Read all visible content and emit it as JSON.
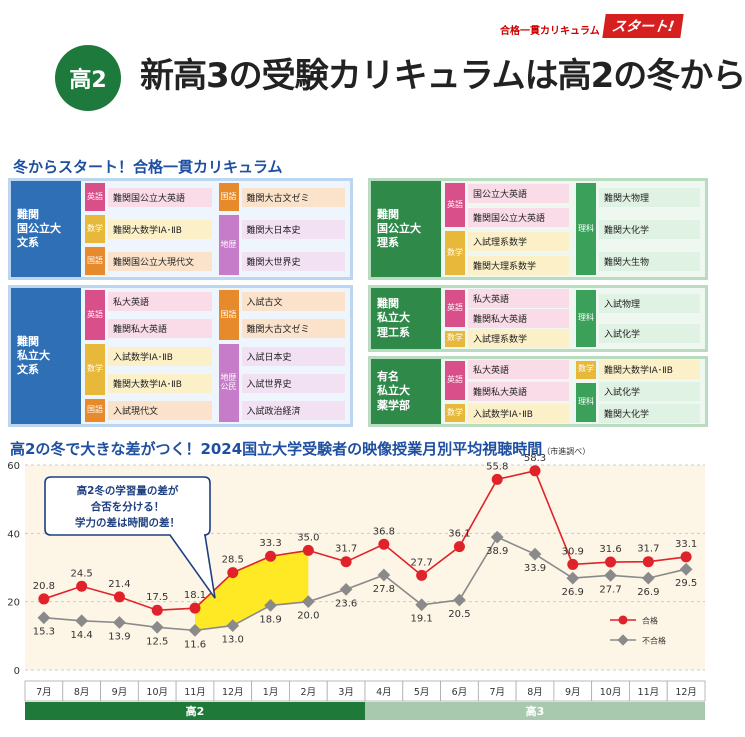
{
  "header": {
    "badge": "高2",
    "title": "新高3の受験カリキュラムは高2の冬から",
    "tag_small": "合格一貫カリキュラム",
    "tag_start": "スタート!"
  },
  "curriculum": {
    "heading": "冬からスタート！合格一貫カリキュラム",
    "panels": [
      {
        "label": "難関\n国公立大\n文系",
        "subjects": [
          {
            "name": "英語",
            "type": "eng",
            "courses": [
              "難関国公立大英語"
            ]
          },
          {
            "name": "数学",
            "type": "math",
            "courses": [
              "難関大数学ⅠA･ⅡB"
            ]
          },
          {
            "name": "国語",
            "type": "jp",
            "courses": [
              "難関国公立大現代文"
            ]
          }
        ],
        "subjects2": [
          {
            "name": "国語",
            "type": "jp",
            "courses": [
              "難関大古文ゼミ"
            ]
          },
          {
            "name": "地歴",
            "type": "geo",
            "courses": [
              "難関大日本史",
              "難関大世界史"
            ]
          }
        ]
      },
      {
        "label": "難関\n私立大\n文系",
        "subjects": [
          {
            "name": "英語",
            "type": "eng",
            "courses": [
              "私大英語",
              "難関私大英語"
            ]
          },
          {
            "name": "数学",
            "type": "math",
            "courses": [
              "入試数学ⅠA･ⅡB",
              "難関大数学ⅠA･ⅡB"
            ]
          },
          {
            "name": "国語",
            "type": "jp",
            "courses": [
              "入試現代文"
            ]
          }
        ],
        "subjects2": [
          {
            "name": "国語",
            "type": "jp",
            "courses": [
              "入試古文",
              "難関大古文ゼミ"
            ]
          },
          {
            "name": "地歴\n公民",
            "type": "geo",
            "courses": [
              "入試日本史",
              "入試世界史",
              "入試政治経済"
            ]
          }
        ]
      },
      {
        "label": "難関\n国公立大\n理系",
        "subjects": [
          {
            "name": "英語",
            "type": "eng",
            "courses": [
              "国公立大英語",
              "難関国公立大英語"
            ]
          },
          {
            "name": "数学",
            "type": "math",
            "courses": [
              "入試理系数学",
              "難関大理系数学"
            ]
          }
        ],
        "subjects2": [
          {
            "name": "理科",
            "type": "sci",
            "courses": [
              "難関大物理",
              "難関大化学",
              "難関大生物"
            ]
          }
        ]
      },
      {
        "label": "難関\n私立大\n理工系",
        "subjects": [
          {
            "name": "英語",
            "type": "eng",
            "courses": [
              "私大英語",
              "難関私大英語"
            ]
          },
          {
            "name": "数学",
            "type": "math",
            "courses": [
              "入試理系数学"
            ]
          }
        ],
        "subjects2": [
          {
            "name": "理科",
            "type": "sci",
            "courses": [
              "入試物理",
              "入試化学"
            ]
          }
        ]
      },
      {
        "label": "有名\n私立大\n薬学部",
        "subjects": [
          {
            "name": "英語",
            "type": "eng",
            "courses": [
              "私大英語",
              "難関私大英語"
            ]
          },
          {
            "name": "数学",
            "type": "math",
            "courses": [
              "入試数学ⅠA･ⅡB"
            ]
          }
        ],
        "subjects2": [
          {
            "name": "数学",
            "type": "math",
            "courses": [
              "難関大数学ⅠA･ⅡB"
            ]
          },
          {
            "name": "理科",
            "type": "sci",
            "courses": [
              "入試化学",
              "難関大化学"
            ]
          }
        ]
      }
    ]
  },
  "chart_data": {
    "type": "line",
    "title": "高2の冬で大きな差がつく！2024国立大学受験者の映像授業月別平均視聴時間",
    "source_note": "（市進調べ）",
    "categories": [
      "7月",
      "8月",
      "9月",
      "10月",
      "11月",
      "12月",
      "1月",
      "2月",
      "3月",
      "4月",
      "5月",
      "6月",
      "7月",
      "8月",
      "9月",
      "10月",
      "11月",
      "12月"
    ],
    "series": [
      {
        "name": "合格",
        "color": "#e0222a",
        "values": [
          20.8,
          24.5,
          21.4,
          17.5,
          18.1,
          28.5,
          33.3,
          35.0,
          31.7,
          36.8,
          27.7,
          36.1,
          55.8,
          58.3,
          30.9,
          31.6,
          31.7,
          33.1
        ]
      },
      {
        "name": "不合格",
        "color": "#8a8a8a",
        "values": [
          15.3,
          14.4,
          13.9,
          12.5,
          11.6,
          13.0,
          18.9,
          20.0,
          23.6,
          27.8,
          19.1,
          20.5,
          38.9,
          33.9,
          26.9,
          27.7,
          26.9,
          29.5
        ]
      }
    ],
    "yticks": [
      0,
      20,
      40,
      60
    ],
    "ylim": [
      0,
      60
    ],
    "grades": [
      {
        "label": "高2",
        "from": 0,
        "to": 8,
        "color": "#1f7a3a"
      },
      {
        "label": "高3",
        "from": 9,
        "to": 17,
        "color": "#a9c9ae"
      }
    ],
    "callout": [
      "高2冬の学習量の差が",
      "合否を分ける！",
      "学力の差は時間の差！"
    ],
    "highlight_range": [
      4,
      7
    ],
    "legend_position": "bottom-right"
  }
}
